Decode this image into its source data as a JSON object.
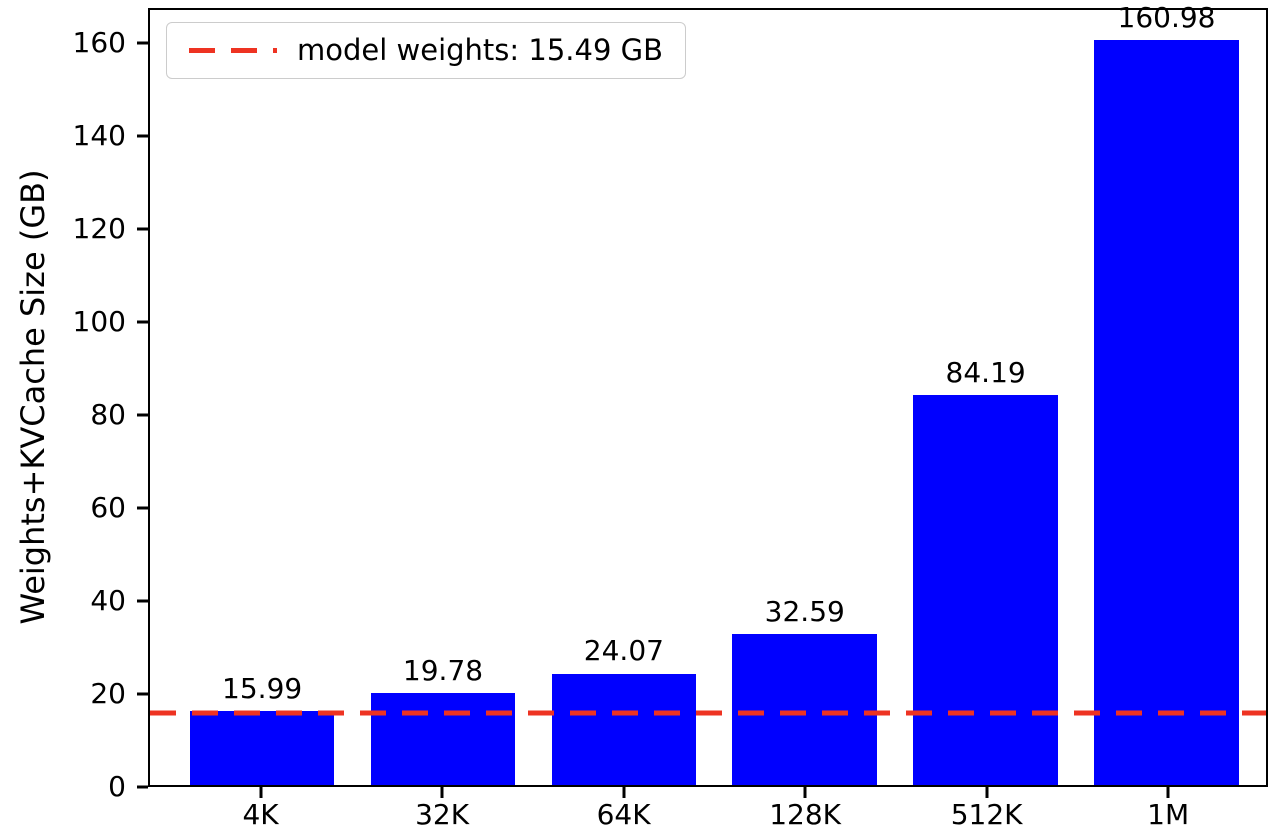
{
  "chart_data": {
    "type": "bar",
    "title": "",
    "xlabel": "",
    "ylabel": "Weights+KVCache Size (GB)",
    "categories": [
      "4K",
      "32K",
      "64K",
      "128K",
      "512K",
      "1M"
    ],
    "values": [
      15.99,
      19.78,
      24.07,
      32.59,
      84.19,
      160.98
    ],
    "value_labels": [
      "15.99",
      "19.78",
      "24.07",
      "32.59",
      "84.19",
      "160.98"
    ],
    "yticks": [
      0,
      20,
      40,
      60,
      80,
      100,
      120,
      140,
      160
    ],
    "ylim": [
      0,
      167.5
    ],
    "bar_color": "#0000ff",
    "grid": false,
    "threshold": {
      "value": 15.49,
      "label": "model weights: 15.49 GB",
      "color": "#ee3322",
      "line_style": "dashed"
    },
    "legend": {
      "position": "upper-left",
      "entries": [
        {
          "label": "model weights: 15.49 GB",
          "color": "#ee3322",
          "line_style": "dashed"
        }
      ]
    }
  }
}
